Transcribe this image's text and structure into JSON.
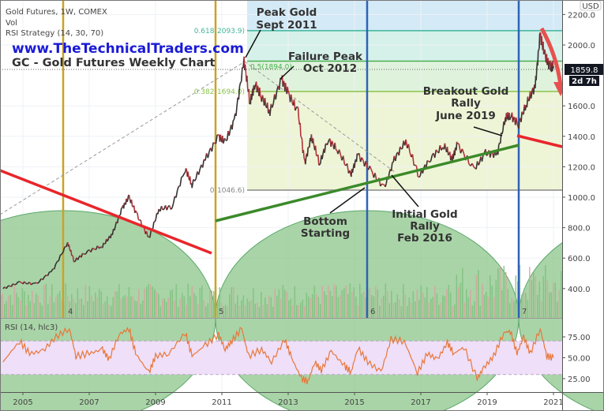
{
  "legend": {
    "symbol": "Gold Futures, 1W, COMEX",
    "vol": "Vol",
    "strategy": "RSI Strategy (14, 30, 70)",
    "rsi": "RSI (14, hlc3)"
  },
  "branding": {
    "website": "www.TheTechnicalTraders.com",
    "chart_title": "GC - Gold Futures Weekly Chart"
  },
  "price_axis": {
    "currency": "USD",
    "last_price": "1859.8",
    "countdown": "2d 7h"
  },
  "annotations": {
    "peak": [
      "Peak Gold",
      "Sept 2011"
    ],
    "failure": [
      "Failure Peak",
      "Oct 2012"
    ],
    "breakout": [
      "Breakout Gold",
      "Rally",
      "June 2019"
    ],
    "bottom": [
      "Bottom",
      "Starting"
    ],
    "initial": [
      "Initial Gold",
      "Rally",
      "Feb 2016"
    ]
  },
  "fib_levels": [
    {
      "label": "0.618(2093.9)",
      "value": 2093.9,
      "color": "#3fb69a"
    },
    {
      "label": "0.5(1894.0)",
      "value": 1894.0,
      "color": "#4caf50"
    },
    {
      "label": "0.382(1694.0)",
      "value": 1694.0,
      "color": "#8bc34a"
    },
    {
      "label": "0(1046.6)",
      "value": 1046.6,
      "color": "#888888"
    }
  ],
  "cycle_labels": [
    "4",
    "5",
    "6",
    "7"
  ],
  "colors": {
    "price_up": "#333333",
    "price_down": "#b2323a",
    "rsi_line": "#e8773a",
    "rsi_band": "#efdff8",
    "website": "#1a1ad6",
    "trend_red": "#e8262b",
    "trend_green": "#3b8a2a",
    "cycle_gold": "#c9a227",
    "cycle_blue": "#2f62b8"
  },
  "chart_data": [
    {
      "type": "line",
      "title": "Gold Futures, 1W, COMEX",
      "ylabel": "USD",
      "ylim": [
        250,
        2250
      ],
      "yticks": [
        "400.0",
        "600.0",
        "800.0",
        "1000.0",
        "1200.0",
        "1400.0",
        "1600.0",
        "2000.0",
        "2200.0"
      ],
      "xticks": [
        "2005",
        "2007",
        "2009",
        "2011",
        "2013",
        "2015",
        "2017",
        "2019",
        "2021"
      ],
      "series": [
        {
          "name": "Gold Futures",
          "x": [
            2004.4,
            2004.9,
            2005.4,
            2005.9,
            2006.35,
            2006.55,
            2006.9,
            2007.4,
            2007.7,
            2008.0,
            2008.2,
            2008.45,
            2008.8,
            2009.1,
            2009.5,
            2009.9,
            2010.1,
            2010.5,
            2010.9,
            2011.1,
            2011.4,
            2011.67,
            2011.85,
            2012.0,
            2012.2,
            2012.45,
            2012.8,
            2013.0,
            2013.3,
            2013.5,
            2013.7,
            2013.95,
            2014.2,
            2014.5,
            2014.9,
            2015.1,
            2015.5,
            2015.9,
            2016.2,
            2016.55,
            2016.95,
            2017.3,
            2017.7,
            2017.95,
            2018.1,
            2018.6,
            2018.95,
            2019.3,
            2019.55,
            2019.7,
            2019.95,
            2020.2,
            2020.45,
            2020.6,
            2020.75,
            2020.9,
            2021.0
          ],
          "values": [
            400,
            440,
            430,
            520,
            700,
            580,
            640,
            680,
            760,
            930,
            1000,
            880,
            730,
            920,
            940,
            1190,
            1080,
            1250,
            1400,
            1360,
            1520,
            1900,
            1620,
            1750,
            1660,
            1560,
            1780,
            1680,
            1560,
            1220,
            1400,
            1220,
            1380,
            1310,
            1150,
            1280,
            1170,
            1060,
            1250,
            1370,
            1140,
            1260,
            1340,
            1250,
            1350,
            1180,
            1290,
            1280,
            1520,
            1540,
            1480,
            1620,
            1730,
            2070,
            1920,
            1860,
            1860
          ]
        }
      ]
    },
    {
      "type": "line",
      "title": "RSI (14, hlc3)",
      "ylim": [
        12,
        95
      ],
      "yticks": [
        "25.00",
        "50.00",
        "75.00"
      ],
      "band": [
        30,
        70
      ],
      "series": [
        {
          "name": "RSI",
          "x": [
            2004.4,
            2004.9,
            2005.2,
            2005.6,
            2006.0,
            2006.4,
            2006.6,
            2007.0,
            2007.4,
            2007.6,
            2007.9,
            2008.2,
            2008.4,
            2008.8,
            2009.0,
            2009.4,
            2009.9,
            2010.1,
            2010.5,
            2010.9,
            2011.1,
            2011.3,
            2011.6,
            2011.8,
            2012.2,
            2012.5,
            2012.9,
            2013.1,
            2013.4,
            2013.6,
            2013.8,
            2014.0,
            2014.3,
            2014.7,
            2014.9,
            2015.1,
            2015.4,
            2015.8,
            2016.1,
            2016.5,
            2016.9,
            2017.2,
            2017.5,
            2017.8,
            2018.0,
            2018.3,
            2018.7,
            2018.9,
            2019.2,
            2019.5,
            2019.7,
            2019.9,
            2020.1,
            2020.3,
            2020.6,
            2020.8,
            2021.0
          ],
          "values": [
            45,
            70,
            55,
            58,
            75,
            85,
            52,
            55,
            60,
            48,
            78,
            85,
            55,
            32,
            52,
            55,
            80,
            52,
            65,
            78,
            60,
            70,
            85,
            52,
            60,
            45,
            72,
            50,
            25,
            22,
            45,
            35,
            58,
            40,
            33,
            62,
            45,
            33,
            72,
            70,
            32,
            55,
            48,
            68,
            55,
            63,
            25,
            38,
            52,
            80,
            82,
            55,
            75,
            55,
            85,
            52,
            50
          ]
        }
      ]
    }
  ]
}
